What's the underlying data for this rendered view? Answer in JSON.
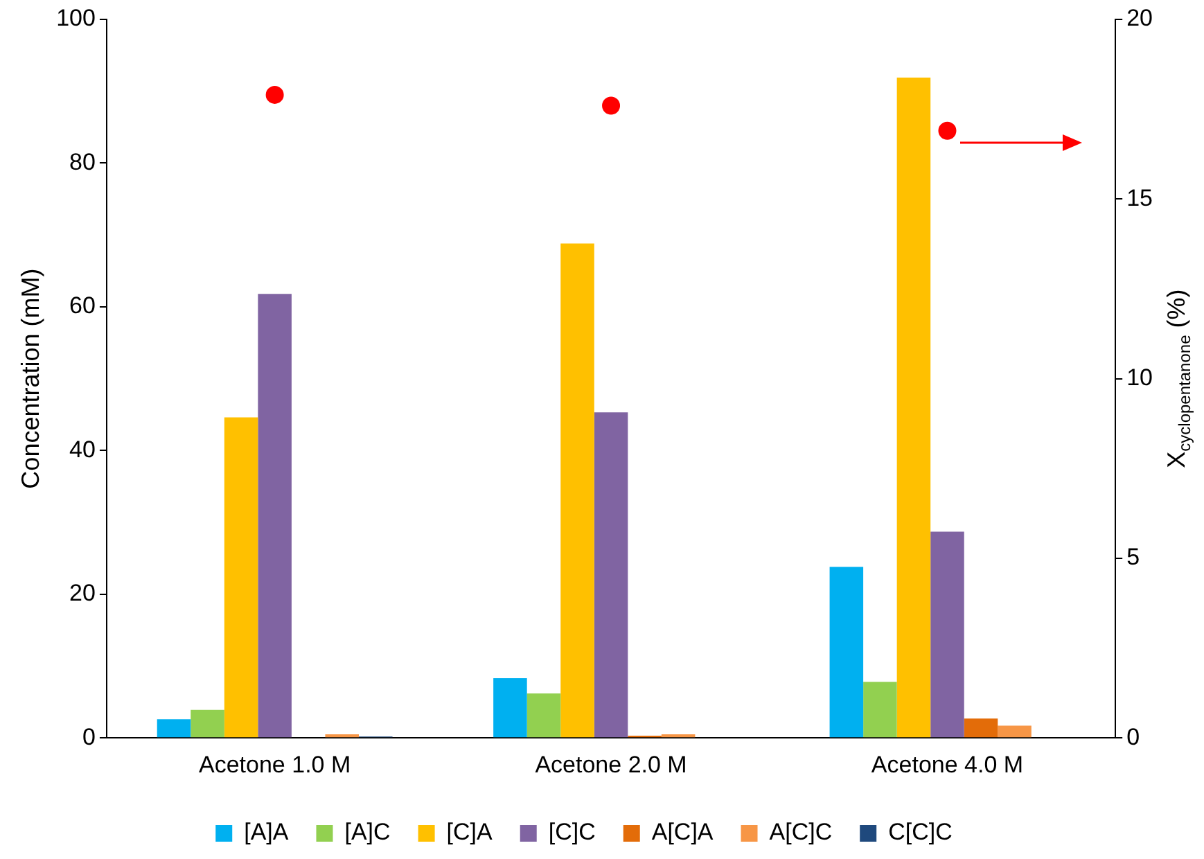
{
  "chart_data": {
    "type": "bar",
    "categories": [
      "Acetone 1.0 M",
      "Acetone 2.0 M",
      "Acetone 4.0 M"
    ],
    "ylabel": "Concentration (mM)",
    "y2label": "X$_{cyclopentanone}$ (%)",
    "ylim": [
      0,
      100
    ],
    "yticks": [
      0,
      20,
      40,
      60,
      80,
      100
    ],
    "y2lim": [
      0,
      20
    ],
    "y2ticks": [
      0,
      5,
      10,
      15,
      20
    ],
    "grid": false,
    "legend": "bottom",
    "series": [
      {
        "name": "[A]A",
        "color": "#00b0f0",
        "values": [
          2.6,
          8.3,
          23.8
        ]
      },
      {
        "name": "[A]C",
        "color": "#92d050",
        "values": [
          3.9,
          6.2,
          7.8
        ]
      },
      {
        "name": "[C]A",
        "color": "#ffc000",
        "values": [
          44.6,
          68.8,
          91.9
        ]
      },
      {
        "name": "[C]C",
        "color": "#8064a2",
        "values": [
          61.8,
          45.3,
          28.7
        ]
      },
      {
        "name": "A[C]A",
        "color": "#e36c09",
        "values": [
          0,
          0.3,
          2.7
        ]
      },
      {
        "name": "A[C]C",
        "color": "#f79646",
        "values": [
          0.5,
          0.5,
          1.7
        ]
      },
      {
        "name": "C[C]C",
        "color": "#1f497d",
        "values": [
          0.2,
          0,
          0
        ]
      },
      {
        "type": "scatter",
        "axis": "y2",
        "color": "#ff0000",
        "marker": "circle",
        "values": [
          17.9,
          17.6,
          16.9
        ]
      }
    ]
  }
}
